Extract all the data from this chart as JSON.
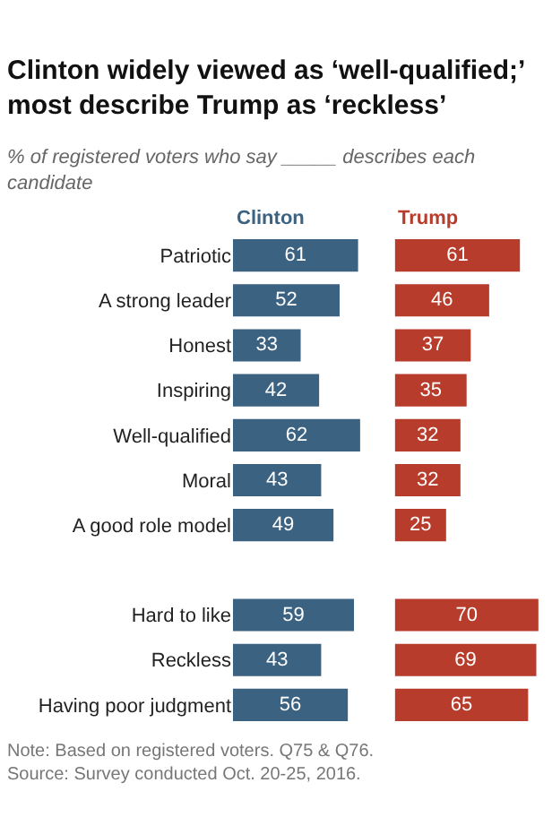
{
  "chart_data": [
    {
      "type": "bar",
      "orientation": "horizontal",
      "data_labels": true,
      "title": "Clinton widely viewed as ‘well-qualified;’ most describe Trump as ‘reckless’",
      "subtitle": "% of registered voters who say _____ describes each candidate",
      "categories": [
        "Patriotic",
        "A strong leader",
        "Honest",
        "Inspiring",
        "Well-qualified",
        "Moral",
        "A good role model",
        null,
        "Hard to like",
        "Reckless",
        "Having poor judgment"
      ],
      "series": [
        {
          "name": "Clinton",
          "color": "#3c6282",
          "values": [
            61,
            52,
            33,
            42,
            62,
            43,
            49,
            null,
            59,
            43,
            56
          ]
        }
      ],
      "annotations": [
        "Note: Based on registered voters. Q75 & Q76.",
        "Source: Survey conducted Oct. 20-25, 2016."
      ]
    },
    {
      "type": "bar",
      "orientation": "horizontal",
      "data_labels": true,
      "tick_labels": false,
      "categories": [
        "Patriotic",
        "A strong leader",
        "Honest",
        "Inspiring",
        "Well-qualified",
        "Moral",
        "A good role model",
        null,
        "Hard to like",
        "Reckless",
        "Having poor judgment"
      ],
      "series": [
        {
          "name": "Trump",
          "color": "#b73c2c",
          "values": [
            61,
            46,
            37,
            35,
            32,
            32,
            25,
            null,
            70,
            69,
            65
          ]
        }
      ]
    }
  ]
}
